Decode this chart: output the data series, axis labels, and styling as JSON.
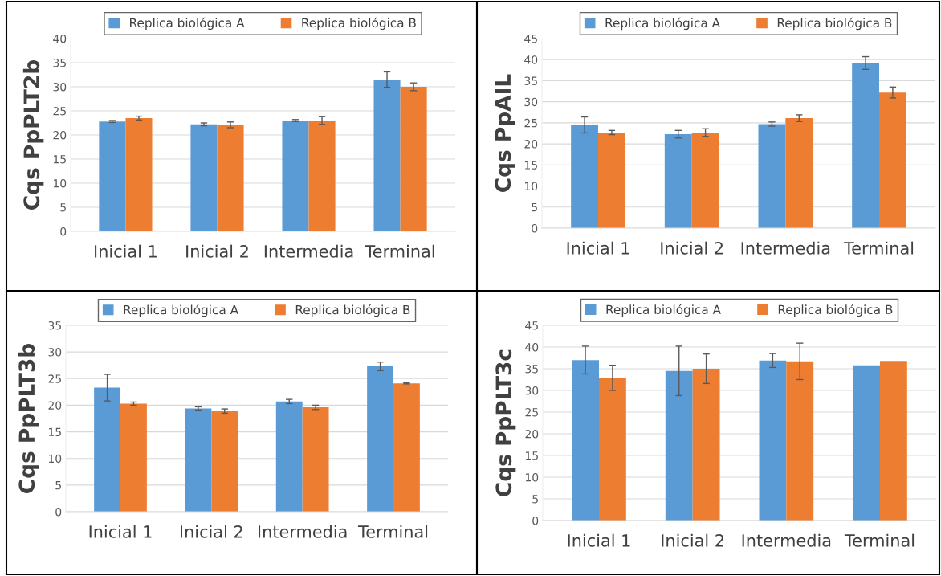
{
  "chart_data": [
    {
      "type": "bar",
      "ylabel": "Cqs PpPLT2b",
      "categories": [
        "Inicial 1",
        "Inicial 2",
        "Intermedia",
        "Terminal"
      ],
      "ylim": [
        0,
        40
      ],
      "yticks": [
        0,
        5,
        10,
        15,
        20,
        25,
        30,
        35,
        40
      ],
      "grid": "y",
      "legend": "top",
      "series": [
        {
          "name": "Replica biológica A",
          "color": "#5b9bd5",
          "values": [
            22.8,
            22.2,
            23.0,
            31.5
          ],
          "errors": [
            0.2,
            0.3,
            0.2,
            1.6
          ]
        },
        {
          "name": "Replica biológica B",
          "color": "#ed7d31",
          "values": [
            23.5,
            22.1,
            23.0,
            30.0
          ],
          "errors": [
            0.4,
            0.6,
            0.8,
            0.8
          ]
        }
      ]
    },
    {
      "type": "bar",
      "ylabel": "Cqs PpAIL",
      "categories": [
        "Inicial 1",
        "Inicial 2",
        "Intermedia",
        "Terminal"
      ],
      "ylim": [
        0,
        45
      ],
      "yticks": [
        0,
        5,
        10,
        15,
        20,
        25,
        30,
        35,
        40,
        45
      ],
      "grid": "y",
      "legend": "top",
      "series": [
        {
          "name": "Replica biológica A",
          "color": "#5b9bd5",
          "values": [
            24.5,
            22.3,
            24.7,
            39.2
          ],
          "errors": [
            1.9,
            0.9,
            0.5,
            1.5
          ]
        },
        {
          "name": "Replica biológica B",
          "color": "#ed7d31",
          "values": [
            22.7,
            22.7,
            26.1,
            32.2
          ],
          "errors": [
            0.5,
            0.9,
            0.8,
            1.3
          ]
        }
      ]
    },
    {
      "type": "bar",
      "ylabel": "Cqs PpPLT3b",
      "categories": [
        "Inicial 1",
        "Inicial 2",
        "Intermedia",
        "Terminal"
      ],
      "ylim": [
        0,
        35
      ],
      "yticks": [
        0,
        5,
        10,
        15,
        20,
        25,
        30,
        35
      ],
      "grid": "y",
      "legend": "top",
      "series": [
        {
          "name": "Replica biológica A",
          "color": "#5b9bd5",
          "values": [
            23.3,
            19.4,
            20.7,
            27.3
          ],
          "errors": [
            2.5,
            0.3,
            0.4,
            0.8
          ]
        },
        {
          "name": "Replica biológica B",
          "color": "#ed7d31",
          "values": [
            20.3,
            18.9,
            19.6,
            24.1
          ],
          "errors": [
            0.3,
            0.4,
            0.4,
            0.1
          ]
        }
      ]
    },
    {
      "type": "bar",
      "ylabel": "Cqs PpPLT3c",
      "categories": [
        "Inicial 1",
        "Inicial 2",
        "Intermedia",
        "Terminal"
      ],
      "ylim": [
        0,
        45
      ],
      "yticks": [
        0,
        5,
        10,
        15,
        20,
        25,
        30,
        35,
        40,
        45
      ],
      "grid": "y",
      "legend": "top",
      "series": [
        {
          "name": "Replica biológica A",
          "color": "#5b9bd5",
          "values": [
            37.0,
            34.5,
            36.9,
            35.8
          ],
          "errors": [
            3.2,
            5.7,
            1.6,
            null
          ]
        },
        {
          "name": "Replica biológica B",
          "color": "#ed7d31",
          "values": [
            32.9,
            35.0,
            36.7,
            36.8
          ],
          "errors": [
            2.9,
            3.4,
            4.2,
            null
          ]
        }
      ]
    }
  ]
}
